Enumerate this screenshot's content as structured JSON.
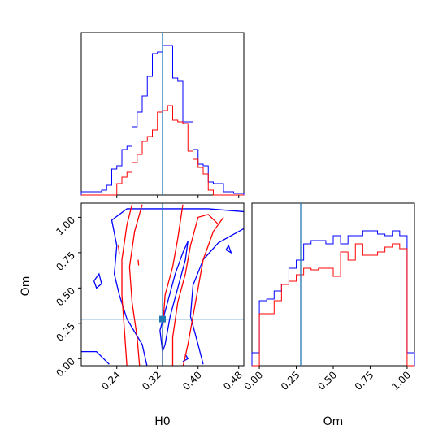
{
  "chart_data": {
    "type": "corner",
    "parameters": [
      "H0",
      "Om"
    ],
    "series": [
      {
        "name": "",
        "color": "#0000ff"
      },
      {
        "name": "",
        "color": "#ff0000"
      }
    ],
    "truth": {
      "H0": 0.33,
      "Om": 0.28,
      "color": "#1f77b4"
    },
    "panels": [
      {
        "id": "hist-H0",
        "type": "histogram",
        "xlim": [
          0.17,
          0.49
        ],
        "ylim": [
          0,
          1.0
        ],
        "bin_edges": [
          0.17,
          0.185,
          0.2,
          0.21,
          0.22,
          0.23,
          0.24,
          0.25,
          0.26,
          0.27,
          0.28,
          0.29,
          0.3,
          0.31,
          0.32,
          0.33,
          0.34,
          0.35,
          0.36,
          0.37,
          0.38,
          0.39,
          0.4,
          0.41,
          0.42,
          0.43,
          0.44,
          0.45,
          0.46,
          0.47,
          0.48,
          0.49
        ],
        "series": [
          {
            "series_index": 0,
            "heights": [
              0.02,
              0.02,
              0.02,
              0.03,
              0.06,
              0.16,
              0.18,
              0.28,
              0.3,
              0.42,
              0.51,
              0.61,
              0.73,
              0.87,
              0.88,
              0.92,
              0.92,
              0.72,
              0.7,
              0.45,
              0.45,
              0.28,
              0.19,
              0.18,
              0.08,
              0.07,
              0.07,
              0.02,
              0.02,
              0.01,
              0.01
            ]
          },
          {
            "series_index": 1,
            "heights": [
              0.0,
              0.0,
              0.0,
              0.0,
              0.0,
              0.0,
              0.07,
              0.11,
              0.14,
              0.2,
              0.25,
              0.33,
              0.36,
              0.4,
              0.51,
              0.52,
              0.55,
              0.46,
              0.45,
              0.44,
              0.27,
              0.22,
              0.17,
              0.13,
              0.03,
              0.0,
              0.0,
              0.0,
              0.0,
              0.0,
              0.0
            ]
          }
        ]
      },
      {
        "id": "hist-Om",
        "type": "histogram",
        "xlim": [
          -0.05,
          1.05
        ],
        "ylim": [
          0,
          1.0
        ],
        "bin_edges": [
          -0.05,
          0.0,
          0.05,
          0.1,
          0.15,
          0.2,
          0.25,
          0.3,
          0.35,
          0.4,
          0.45,
          0.5,
          0.55,
          0.6,
          0.65,
          0.7,
          0.75,
          0.8,
          0.85,
          0.9,
          0.95,
          1.0,
          1.05
        ],
        "series": [
          {
            "series_index": 0,
            "heights": [
              0.08,
              0.4,
              0.41,
              0.46,
              0.5,
              0.6,
              0.65,
              0.75,
              0.77,
              0.77,
              0.75,
              0.8,
              0.75,
              0.8,
              0.8,
              0.83,
              0.83,
              0.81,
              0.8,
              0.83,
              0.8,
              0.08
            ]
          },
          {
            "series_index": 1,
            "heights": [
              0.0,
              0.32,
              0.32,
              0.4,
              0.5,
              0.52,
              0.56,
              0.6,
              0.59,
              0.6,
              0.6,
              0.55,
              0.7,
              0.65,
              0.75,
              0.68,
              0.68,
              0.7,
              0.73,
              0.75,
              0.72,
              0.0
            ]
          }
        ]
      },
      {
        "id": "contour-H0-Om",
        "type": "contour",
        "x": "H0",
        "y": "Om",
        "xlim": [
          0.17,
          0.49
        ],
        "ylim": [
          -0.05,
          1.1
        ],
        "contours": [
          {
            "series_index": 0,
            "points": [
              [
                0.3,
                -0.06
              ],
              [
                0.29,
                0.1
              ],
              [
                0.26,
                0.28
              ],
              [
                0.245,
                0.45
              ],
              [
                0.235,
                0.6
              ],
              [
                0.24,
                0.8
              ],
              [
                0.23,
                0.98
              ],
              [
                0.26,
                1.06
              ],
              [
                0.42,
                1.06
              ],
              [
                0.49,
                1.04
              ]
            ]
          },
          {
            "series_index": 0,
            "points": [
              [
                0.17,
                0.05
              ],
              [
                0.2,
                0.05
              ],
              [
                0.225,
                -0.04
              ]
            ]
          },
          {
            "series_index": 0,
            "points": [
              [
                0.41,
                -0.04
              ],
              [
                0.4,
                0.1
              ],
              [
                0.385,
                0.3
              ],
              [
                0.39,
                0.52
              ],
              [
                0.41,
                0.7
              ],
              [
                0.44,
                0.82
              ],
              [
                0.49,
                0.92
              ]
            ]
          },
          {
            "series_index": 0,
            "points": [
              [
                0.33,
                0.05
              ],
              [
                0.325,
                0.2
              ],
              [
                0.34,
                0.4
              ],
              [
                0.355,
                0.6
              ],
              [
                0.37,
                0.75
              ],
              [
                0.38,
                0.83
              ],
              [
                0.375,
                0.7
              ],
              [
                0.36,
                0.5
              ],
              [
                0.345,
                0.3
              ],
              [
                0.335,
                0.1
              ],
              [
                0.33,
                0.05
              ]
            ]
          },
          {
            "series_index": 0,
            "points": [
              [
                0.195,
                0.55
              ],
              [
                0.205,
                0.6
              ],
              [
                0.21,
                0.53
              ],
              [
                0.2,
                0.5
              ],
              [
                0.195,
                0.55
              ]
            ]
          },
          {
            "series_index": 0,
            "points": [
              [
                0.455,
                0.77
              ],
              [
                0.46,
                0.8
              ],
              [
                0.465,
                0.75
              ],
              [
                0.455,
                0.77
              ]
            ]
          },
          {
            "series_index": 0,
            "points": [
              [
                0.37,
                -0.02
              ],
              [
                0.38,
                0.0
              ],
              [
                0.375,
                0.03
              ]
            ]
          },
          {
            "series_index": 1,
            "points": [
              [
                0.26,
                -0.06
              ],
              [
                0.255,
                0.2
              ],
              [
                0.25,
                0.45
              ],
              [
                0.25,
                0.7
              ],
              [
                0.26,
                0.95
              ],
              [
                0.27,
                1.09
              ]
            ]
          },
          {
            "series_index": 1,
            "points": [
              [
                0.285,
                -0.06
              ],
              [
                0.28,
                0.15
              ],
              [
                0.27,
                0.4
              ],
              [
                0.265,
                0.65
              ],
              [
                0.275,
                0.9
              ],
              [
                0.29,
                1.09
              ]
            ]
          },
          {
            "series_index": 1,
            "points": [
              [
                0.33,
                -0.06
              ],
              [
                0.33,
                0.2
              ],
              [
                0.335,
                0.45
              ],
              [
                0.35,
                0.65
              ],
              [
                0.36,
                0.85
              ],
              [
                0.37,
                1.09
              ]
            ]
          },
          {
            "series_index": 1,
            "points": [
              [
                0.35,
                -0.06
              ],
              [
                0.35,
                0.15
              ],
              [
                0.36,
                0.4
              ],
              [
                0.375,
                0.6
              ],
              [
                0.385,
                0.8
              ],
              [
                0.4,
                1.0
              ],
              [
                0.42,
                1.02
              ],
              [
                0.44,
                0.95
              ]
            ]
          },
          {
            "series_index": 1,
            "points": [
              [
                0.37,
                -0.06
              ],
              [
                0.38,
                0.1
              ],
              [
                0.39,
                0.3
              ],
              [
                0.4,
                0.5
              ],
              [
                0.41,
                0.7
              ],
              [
                0.43,
                0.9
              ],
              [
                0.45,
                1.0
              ]
            ]
          },
          {
            "series_index": 1,
            "points": [
              [
                0.243,
                0.8
              ],
              [
                0.245,
                0.74
              ]
            ]
          },
          {
            "series_index": 1,
            "points": [
              [
                0.282,
                0.7
              ],
              [
                0.283,
                0.66
              ]
            ]
          }
        ]
      }
    ],
    "axes": {
      "H0": {
        "label": "H0",
        "ticks": [
          0.24,
          0.32,
          0.4,
          0.48
        ],
        "tick_labels": [
          "0.24",
          "0.32",
          "0.40",
          "0.48"
        ]
      },
      "Om_y": {
        "label": "Om",
        "ticks": [
          0.0,
          0.25,
          0.5,
          0.75,
          1.0
        ],
        "tick_labels": [
          "0.00",
          "0.25",
          "0.50",
          "0.75",
          "1.00"
        ]
      },
      "Om_x": {
        "label": "Om",
        "ticks": [
          0.0,
          0.25,
          0.5,
          0.75,
          1.0
        ],
        "tick_labels": [
          "0.00",
          "0.25",
          "0.50",
          "0.75",
          "1.00"
        ]
      }
    }
  }
}
